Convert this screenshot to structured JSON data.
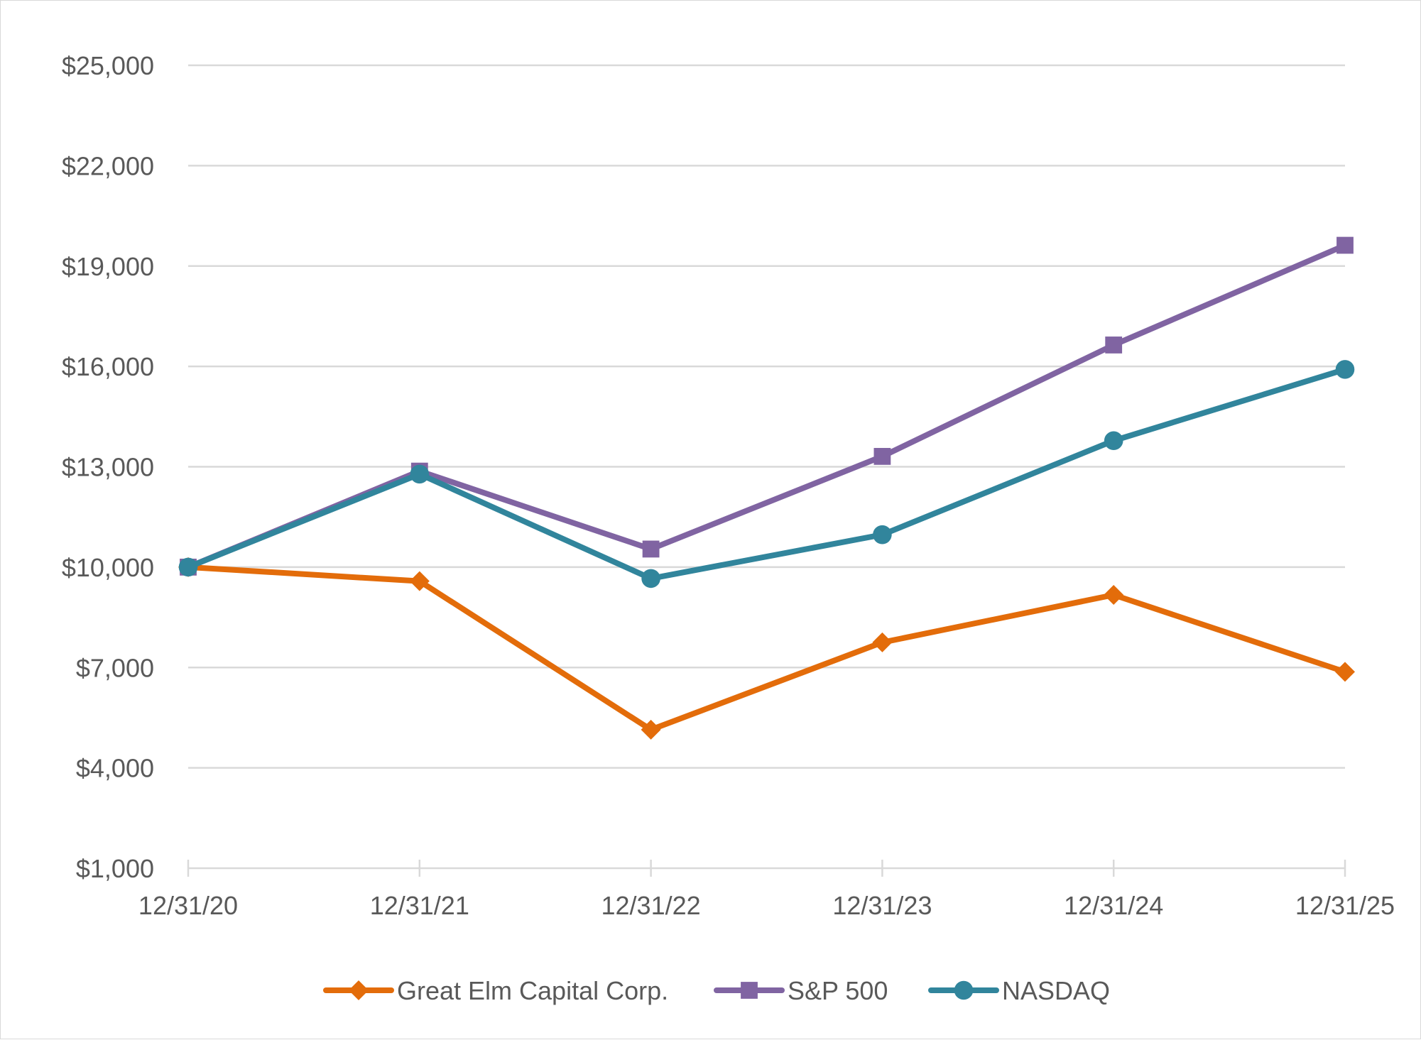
{
  "chart_data": {
    "type": "line",
    "title": "",
    "xlabel": "",
    "ylabel": "",
    "categories": [
      "12/31/20",
      "12/31/21",
      "12/31/22",
      "12/31/23",
      "12/31/24",
      "12/31/25"
    ],
    "ylim": [
      1000,
      25000
    ],
    "yticks": [
      1000,
      4000,
      7000,
      10000,
      13000,
      16000,
      19000,
      22000,
      25000
    ],
    "ytick_labels": [
      "$1,000",
      "$4,000",
      "$7,000",
      "$10,000",
      "$13,000",
      "$16,000",
      "$19,000",
      "$22,000",
      "$25,000"
    ],
    "grid": true,
    "legend": "bottom",
    "series": [
      {
        "name": "Great Elm Capital Corp.",
        "color": "#e36c0a",
        "marker": "diamond",
        "values": [
          10000,
          9580,
          5140,
          7750,
          9170,
          6870
        ]
      },
      {
        "name": "S&P 500",
        "color": "#8064a2",
        "marker": "square",
        "values": [
          10000,
          12870,
          10540,
          13310,
          16640,
          19620
        ]
      },
      {
        "name": "NASDAQ",
        "color": "#31859c",
        "marker": "circle",
        "values": [
          10000,
          12780,
          9660,
          10970,
          13780,
          15910
        ]
      }
    ]
  }
}
